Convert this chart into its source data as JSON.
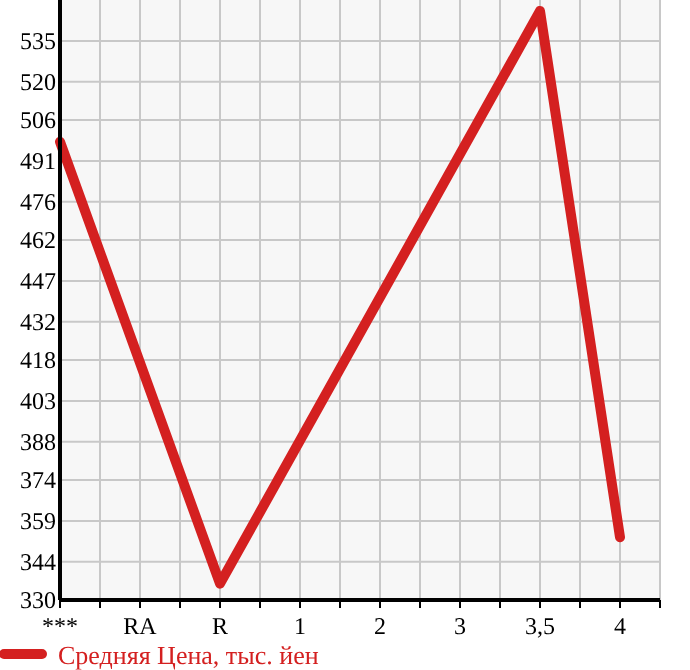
{
  "chart_data": {
    "type": "line",
    "categories": [
      "***",
      "RA",
      "R",
      "1",
      "2",
      "3",
      "3,5",
      "4"
    ],
    "series": [
      {
        "name": "Средняя Цена, тыс. йен",
        "color": "#d42020",
        "values": [
          498,
          null,
          336,
          null,
          null,
          null,
          546,
          353
        ]
      }
    ],
    "ylim": [
      330,
      550
    ],
    "yticks": [
      330,
      344,
      359,
      374,
      388,
      403,
      418,
      432,
      447,
      462,
      476,
      491,
      506,
      520,
      535
    ],
    "grid": true,
    "legend": "bottom",
    "marker": "none",
    "line_style": "solid"
  }
}
